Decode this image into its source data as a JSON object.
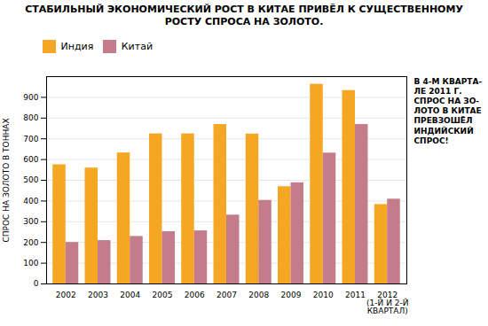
{
  "chart_data": {
    "type": "bar",
    "title": "СТАБИЛЬНЫЙ ЭКОНОМИЧЕСКИЙ РОСТ В КИТАЕ ПРИВЁЛ К СУЩЕСТВЕННОМУ РОСТУ СПРОСА НА ЗОЛОТО.",
    "y_label": "СПРОС НА ЗОЛОТО В ТОННАХ",
    "categories": [
      "2002",
      "2003",
      "2004",
      "2005",
      "2006",
      "2007",
      "2008",
      "2009",
      "2010",
      "2011",
      "2012\n(1-Й И 2-Й\nКВАРТАЛ)"
    ],
    "series": [
      {
        "name": "Индия",
        "color": "#F5A623",
        "values": [
          575,
          559,
          632,
          724,
          724,
          769,
          723,
          469,
          963,
          933,
          383
        ]
      },
      {
        "name": "Китай",
        "color": "#C47B8A",
        "values": [
          200,
          209,
          229,
          252,
          256,
          332,
          403,
          488,
          631,
          769,
          409
        ]
      }
    ],
    "ylim": [
      0,
      1000
    ],
    "yticks": [
      0,
      100,
      200,
      300,
      400,
      500,
      600,
      700,
      800,
      900
    ],
    "grid": true,
    "legend": "upper left",
    "annotation": "В 4-М КВАРТА-\nЛЕ 2011 Г.\nСПРОС НА ЗО-\nЛОТО В КИТАЕ\nПРЕВЗОШЁЛ\nИНДИЙСКИЙ\nСПРОС!"
  }
}
